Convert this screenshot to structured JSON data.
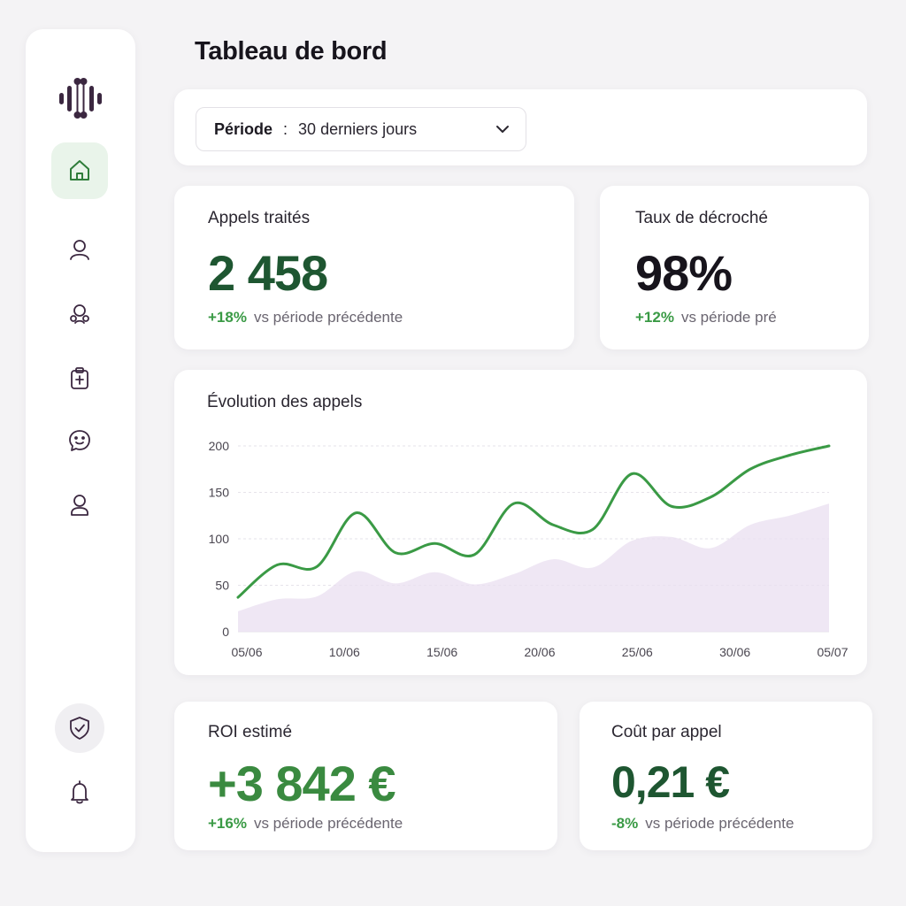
{
  "page": {
    "title": "Tableau de bord"
  },
  "sidebar": {
    "items": [
      {
        "icon": "home-icon",
        "active": true
      },
      {
        "icon": "user-icon"
      },
      {
        "icon": "users-icon"
      },
      {
        "icon": "clipboard-icon"
      },
      {
        "icon": "chat-smile-icon"
      },
      {
        "icon": "profile-icon"
      },
      {
        "icon": "shield-check-icon"
      },
      {
        "icon": "bell-icon"
      }
    ]
  },
  "filter": {
    "label": "Période",
    "separator": ":",
    "value": "30 derniers jours"
  },
  "kpis": {
    "appels": {
      "label": "Appels traités",
      "value": "2 458",
      "delta": "+18%",
      "delta_text": "vs période précédente"
    },
    "decroche": {
      "label": "Taux de décroché",
      "value": "98%",
      "delta": "+12%",
      "delta_text": "vs période pré"
    },
    "roi": {
      "label": "ROI estimé",
      "value": "+3 842 €",
      "delta": "+16%",
      "delta_text": "vs période précédente"
    },
    "cout": {
      "label": "Coût par appel",
      "value": "0,21 €",
      "delta": "-8%",
      "delta_text": "vs période précédente"
    }
  },
  "colors": {
    "dark_green": "#1e5631",
    "green": "#3a9a45",
    "ink": "#17141c",
    "lavender": "#e9dff0"
  },
  "chart": {
    "title": "Évolution des appels"
  },
  "chart_data": {
    "type": "line",
    "title": "Évolution des appels",
    "xlabel": "",
    "ylabel": "",
    "x_ticks": [
      "05/06",
      "10/06",
      "15/06",
      "20/06",
      "25/06",
      "30/06",
      "05/07"
    ],
    "y_ticks": [
      0,
      50,
      100,
      150,
      200
    ],
    "ylim": [
      0,
      200
    ],
    "grid": true,
    "series": [
      {
        "style": "line",
        "x": [
          0,
          2,
          4,
          6,
          8,
          10,
          12,
          14,
          16,
          18,
          20,
          22,
          24,
          26,
          28,
          30
        ],
        "values": [
          37,
          72,
          70,
          128,
          85,
          95,
          83,
          138,
          115,
          110,
          170,
          135,
          145,
          175,
          190,
          200
        ]
      },
      {
        "style": "area",
        "x": [
          0,
          2,
          4,
          6,
          8,
          10,
          12,
          14,
          16,
          18,
          20,
          22,
          24,
          26,
          28,
          30
        ],
        "values": [
          22,
          35,
          38,
          65,
          52,
          64,
          51,
          62,
          78,
          69,
          98,
          102,
          90,
          115,
          125,
          138
        ]
      }
    ]
  }
}
